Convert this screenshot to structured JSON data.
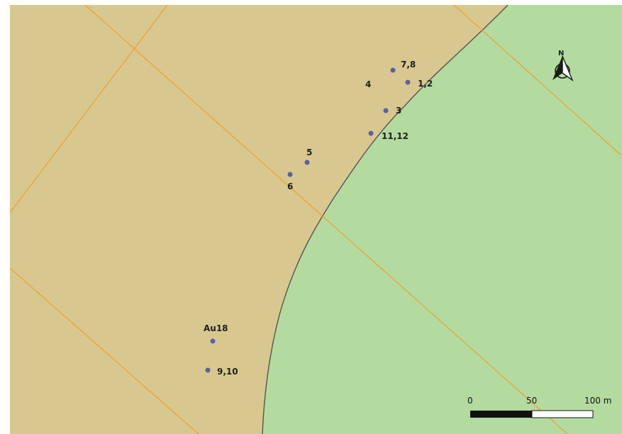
{
  "colors": {
    "land_tan": "#d8c88f",
    "land_green": "#b3dba0",
    "grid_orange": "#f0a030",
    "boundary": "#555555",
    "point": "#5b5ea6"
  },
  "north_arrow": {
    "label": "N",
    "icon": "north-arrow-icon"
  },
  "points": [
    {
      "id": "p-7-8",
      "label": "7,8"
    },
    {
      "id": "p-4",
      "label": "4"
    },
    {
      "id": "p-1-2",
      "label": "1,2"
    },
    {
      "id": "p-3",
      "label": "3"
    },
    {
      "id": "p-11-12",
      "label": "11,12"
    },
    {
      "id": "p-5",
      "label": "5"
    },
    {
      "id": "p-6",
      "label": "6"
    },
    {
      "id": "p-au18",
      "label": "Au18"
    },
    {
      "id": "p-9-10",
      "label": "9,10"
    }
  ],
  "scale_bar": {
    "labels": [
      "0",
      "50",
      "100 m"
    ]
  }
}
